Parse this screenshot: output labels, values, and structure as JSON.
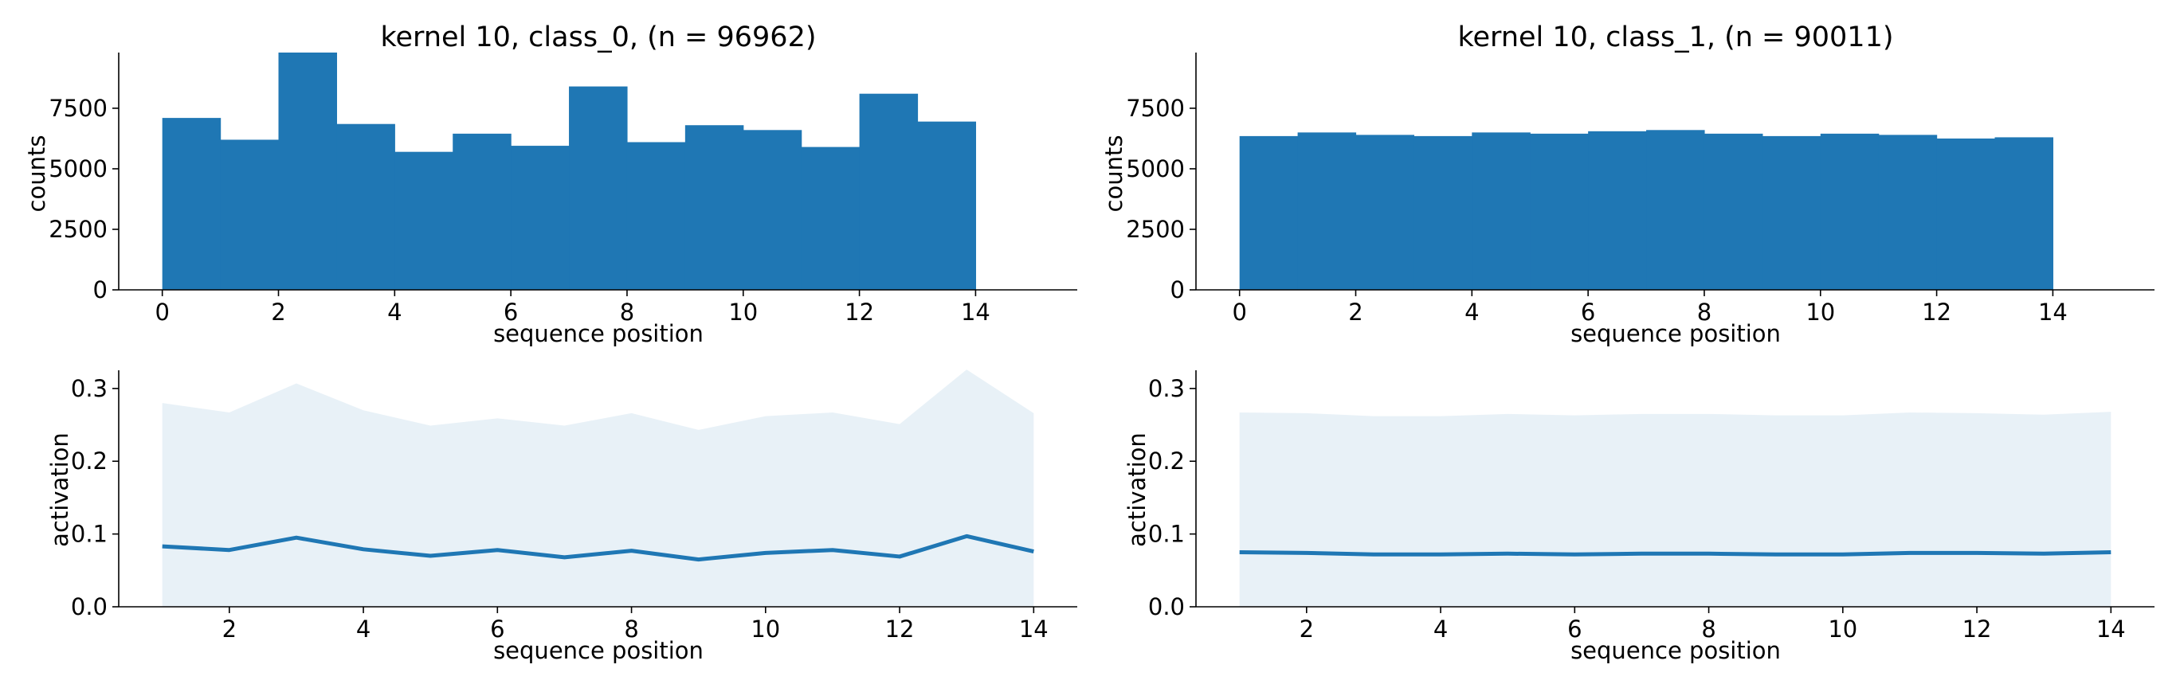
{
  "colors": {
    "bar": "#1f77b4",
    "line": "#1f77b4",
    "band": "#1f77b4"
  },
  "chart_data": [
    {
      "type": "bar",
      "title": "kernel 10, class_0, (n = 96962)",
      "xlabel": "sequence position",
      "ylabel": "counts",
      "bin_edges": [
        0,
        1,
        2,
        3,
        4,
        5,
        6,
        7,
        8,
        9,
        10,
        11,
        12,
        13,
        14
      ],
      "values": [
        7100,
        6200,
        9800,
        6850,
        5700,
        6450,
        5950,
        8400,
        6100,
        6800,
        6600,
        5900,
        8100,
        6950
      ],
      "xlim": [
        -0.75,
        15.75
      ],
      "ylim": [
        0,
        9800
      ],
      "xticks": [
        "0",
        "2",
        "4",
        "6",
        "8",
        "10",
        "12",
        "14"
      ],
      "yticks": [
        "0",
        "2500",
        "5000",
        "7500"
      ],
      "grid": false
    },
    {
      "type": "bar",
      "title": "kernel 10, class_1, (n = 90011)",
      "xlabel": "sequence position",
      "ylabel": "counts",
      "bin_edges": [
        0,
        1,
        2,
        3,
        4,
        5,
        6,
        7,
        8,
        9,
        10,
        11,
        12,
        13,
        14
      ],
      "values": [
        6350,
        6500,
        6400,
        6350,
        6500,
        6450,
        6550,
        6600,
        6450,
        6350,
        6450,
        6400,
        6250,
        6300
      ],
      "xlim": [
        -0.75,
        15.75
      ],
      "ylim": [
        0,
        9800
      ],
      "xticks": [
        "0",
        "2",
        "4",
        "6",
        "8",
        "10",
        "12",
        "14"
      ],
      "yticks": [
        "0",
        "2500",
        "5000",
        "7500"
      ],
      "grid": false
    },
    {
      "type": "area",
      "xlabel": "sequence position",
      "ylabel": "activation",
      "x": [
        1,
        2,
        3,
        4,
        5,
        6,
        7,
        8,
        9,
        10,
        11,
        12,
        13,
        14
      ],
      "series": [
        {
          "kind": "line",
          "values": [
            0.083,
            0.078,
            0.095,
            0.079,
            0.07,
            0.078,
            0.068,
            0.077,
            0.065,
            0.074,
            0.078,
            0.069,
            0.097,
            0.076
          ]
        },
        {
          "kind": "band_upper",
          "values": [
            0.28,
            0.267,
            0.307,
            0.27,
            0.249,
            0.259,
            0.249,
            0.266,
            0.243,
            0.262,
            0.267,
            0.251,
            0.326,
            0.266
          ]
        }
      ],
      "xlim": [
        0.35,
        14.65
      ],
      "ylim": [
        0,
        0.325
      ],
      "xticks": [
        "2",
        "4",
        "6",
        "8",
        "10",
        "12",
        "14"
      ],
      "yticks": [
        "0.0",
        "0.1",
        "0.2",
        "0.3"
      ],
      "grid": false
    },
    {
      "type": "area",
      "xlabel": "sequence position",
      "ylabel": "activation",
      "x": [
        1,
        2,
        3,
        4,
        5,
        6,
        7,
        8,
        9,
        10,
        11,
        12,
        13,
        14
      ],
      "series": [
        {
          "kind": "line",
          "values": [
            0.075,
            0.074,
            0.072,
            0.072,
            0.073,
            0.072,
            0.073,
            0.073,
            0.072,
            0.072,
            0.074,
            0.074,
            0.073,
            0.075
          ]
        },
        {
          "kind": "band_upper",
          "values": [
            0.267,
            0.266,
            0.262,
            0.262,
            0.265,
            0.263,
            0.265,
            0.265,
            0.263,
            0.263,
            0.267,
            0.266,
            0.264,
            0.268
          ]
        }
      ],
      "xlim": [
        0.35,
        14.65
      ],
      "ylim": [
        0,
        0.325
      ],
      "xticks": [
        "2",
        "4",
        "6",
        "8",
        "10",
        "12",
        "14"
      ],
      "yticks": [
        "0.0",
        "0.1",
        "0.2",
        "0.3"
      ],
      "grid": false
    }
  ]
}
